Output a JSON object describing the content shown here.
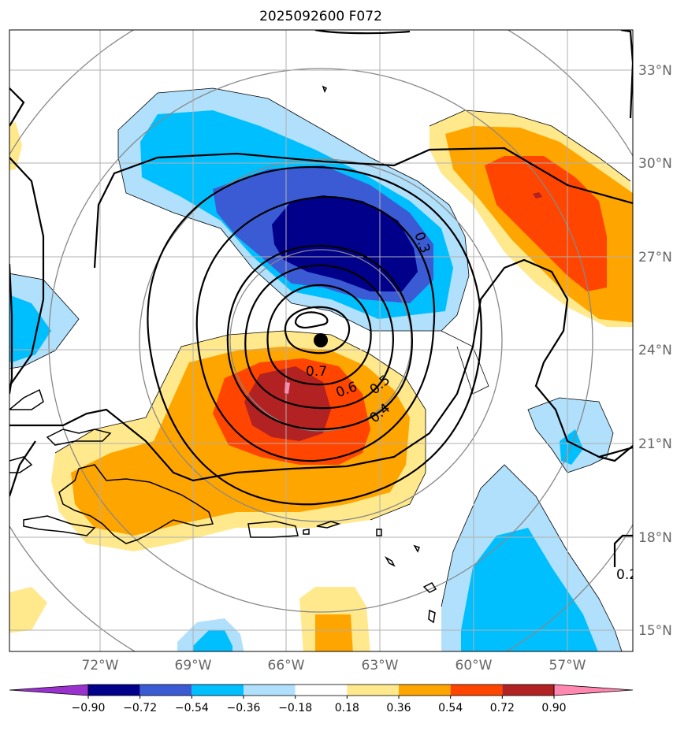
{
  "title": "2025092600 F072",
  "lat_labels": [
    "33°N",
    "30°N",
    "27°N",
    "24°N",
    "21°N",
    "18°N",
    "15°N"
  ],
  "lon_labels": [
    "72°W",
    "69°W",
    "66°W",
    "63°W",
    "60°W",
    "57°W"
  ],
  "colorbar": {
    "ticks": [
      "−0.90",
      "−0.72",
      "−0.54",
      "−0.36",
      "−0.18",
      "0.18",
      "0.36",
      "0.54",
      "0.72",
      "0.90"
    ],
    "colors": [
      "#9932cc",
      "#00008b",
      "#3b5bd5",
      "#00bfff",
      "#b0e0fb",
      "#ffffff",
      "#ffe98c",
      "#ffa500",
      "#ff4500",
      "#b22222",
      "#ff88b0"
    ]
  },
  "contour_labels": [
    "0.7",
    "0.6",
    "0.5",
    "0.4",
    "0.3",
    "0.2"
  ],
  "center_marker": "storm-center-dot"
}
